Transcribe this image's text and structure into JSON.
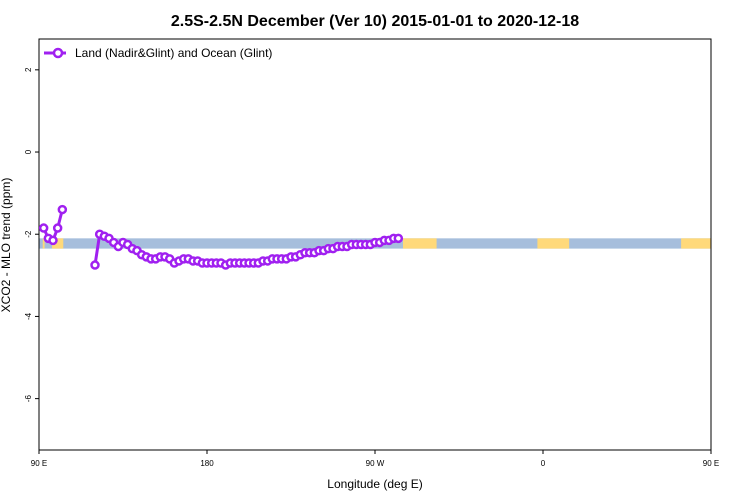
{
  "chart_data": {
    "type": "line",
    "title": "2.5S-2.5N December (Ver 10)   2015-01-01 to 2020-12-18",
    "xlabel": "Longitude (deg E)",
    "ylabel": "XCO2 - MLO trend (ppm)",
    "xlim": [
      90,
      450
    ],
    "ylim": [
      -7.25,
      2.75
    ],
    "x_ticks": [
      {
        "value": 90,
        "label": "90 E"
      },
      {
        "value": 180,
        "label": "180"
      },
      {
        "value": 270,
        "label": "90 W"
      },
      {
        "value": 360,
        "label": "0"
      },
      {
        "value": 450,
        "label": "90 E"
      },
      {
        "value": 540,
        "label": "180"
      }
    ],
    "y_ticks": [
      {
        "value": 2,
        "label": "2"
      },
      {
        "value": 0,
        "label": "0"
      },
      {
        "value": -2,
        "label": "-2"
      },
      {
        "value": -4,
        "label": "-4"
      },
      {
        "value": -6,
        "label": "-6"
      }
    ],
    "legend": {
      "position": "top-left",
      "label": "Land (Nadir&Glint) and Ocean (Glint)"
    },
    "colors": {
      "line": "#a020f0",
      "ocean": "#a6bedc",
      "land": "#ffd97a"
    },
    "surface_band": {
      "y_range": [
        -2.35,
        -2.1
      ],
      "land_segments": [
        [
          92,
          93
        ],
        [
          97,
          103
        ],
        [
          285,
          303
        ],
        [
          357,
          374
        ],
        [
          434,
          452
        ],
        [
          470,
          477
        ],
        [
          494,
          508
        ],
        [
          547,
          554
        ],
        [
          630,
          640
        ]
      ]
    },
    "series": [
      {
        "name": "Land (Nadir&Glint) and Ocean (Glint)",
        "segments": [
          {
            "x": [
              92.5,
              95,
              97.5,
              100,
              102.5
            ],
            "y": [
              -1.85,
              -2.1,
              -2.15,
              -1.85,
              -1.4
            ]
          },
          {
            "x": [
              120,
              122.5,
              125,
              127.5,
              130,
              132.5,
              135,
              137.5,
              140,
              142.5,
              145,
              147.5,
              150,
              152.5,
              155,
              157.5,
              160,
              162.5,
              165,
              167.5,
              170,
              172.5,
              175,
              177.5,
              180,
              182.5,
              185,
              187.5,
              190,
              192.5,
              195,
              197.5,
              200,
              202.5,
              205,
              207.5,
              210,
              212.5,
              215,
              217.5,
              220,
              222.5,
              225,
              227.5,
              230,
              232.5,
              235,
              237.5,
              240,
              242.5,
              245,
              247.5,
              250,
              252.5,
              255,
              257.5,
              260,
              262.5,
              265,
              267.5,
              270,
              272.5,
              275,
              277.5,
              280,
              282.5
            ],
            "y": [
              -2.75,
              -2.0,
              -2.05,
              -2.1,
              -2.2,
              -2.3,
              -2.2,
              -2.25,
              -2.35,
              -2.4,
              -2.5,
              -2.55,
              -2.6,
              -2.6,
              -2.55,
              -2.55,
              -2.6,
              -2.7,
              -2.65,
              -2.6,
              -2.6,
              -2.65,
              -2.65,
              -2.7,
              -2.7,
              -2.7,
              -2.7,
              -2.7,
              -2.75,
              -2.7,
              -2.7,
              -2.7,
              -2.7,
              -2.7,
              -2.7,
              -2.7,
              -2.65,
              -2.65,
              -2.6,
              -2.6,
              -2.6,
              -2.6,
              -2.55,
              -2.55,
              -2.5,
              -2.45,
              -2.45,
              -2.45,
              -2.4,
              -2.4,
              -2.35,
              -2.35,
              -2.3,
              -2.3,
              -2.3,
              -2.25,
              -2.25,
              -2.25,
              -2.25,
              -2.25,
              -2.2,
              -2.2,
              -2.15,
              -2.15,
              -2.1,
              -2.1
            ]
          }
        ]
      }
    ]
  }
}
